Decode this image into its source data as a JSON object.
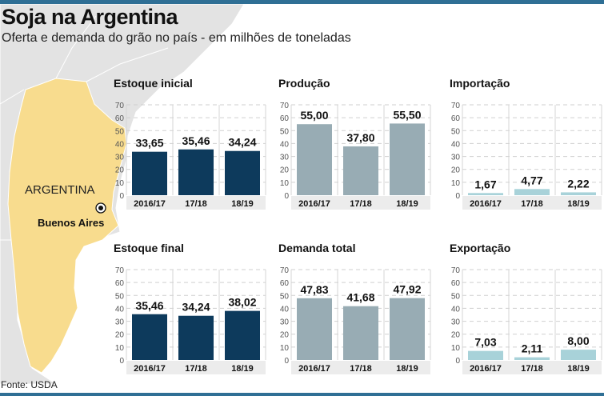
{
  "title": "Soja na Argentina",
  "subtitle": "Oferta e demanda do grão no país - em milhões de toneladas",
  "map": {
    "country_label": "ARGENTINA",
    "city_label": "Buenos Aires",
    "country_color": "#f8dc8e",
    "land_color": "#e3e3e3"
  },
  "source": "Fonte: USDA",
  "chart_data": [
    {
      "type": "bar",
      "title": "Estoque inicial",
      "categories": [
        "2016/17",
        "17/18",
        "18/19"
      ],
      "values": [
        33.65,
        35.46,
        34.24
      ],
      "labels": [
        "33,65",
        "35,46",
        "34,24"
      ],
      "ylim": [
        0,
        70
      ],
      "yticks": [
        0,
        10,
        20,
        30,
        40,
        50,
        60,
        70
      ],
      "color": "#0d3a5c",
      "grid": true
    },
    {
      "type": "bar",
      "title": "Produção",
      "categories": [
        "2016/17",
        "17/18",
        "18/19"
      ],
      "values": [
        55.0,
        37.8,
        55.5
      ],
      "labels": [
        "55,00",
        "37,80",
        "55,50"
      ],
      "ylim": [
        0,
        70
      ],
      "yticks": [
        0,
        10,
        20,
        30,
        40,
        50,
        60,
        70
      ],
      "color": "#98acb4",
      "grid": true
    },
    {
      "type": "bar",
      "title": "Importação",
      "categories": [
        "2016/17",
        "17/18",
        "18/19"
      ],
      "values": [
        1.67,
        4.77,
        2.22
      ],
      "labels": [
        "1,67",
        "4,77",
        "2,22"
      ],
      "ylim": [
        0,
        70
      ],
      "yticks": [
        0,
        10,
        20,
        30,
        40,
        50,
        60,
        70
      ],
      "color": "#a8d2d9",
      "grid": true
    },
    {
      "type": "bar",
      "title": "Estoque final",
      "categories": [
        "2016/17",
        "17/18",
        "18/19"
      ],
      "values": [
        35.46,
        34.24,
        38.02
      ],
      "labels": [
        "35,46",
        "34,24",
        "38,02"
      ],
      "ylim": [
        0,
        70
      ],
      "yticks": [
        0,
        10,
        20,
        30,
        40,
        50,
        60,
        70
      ],
      "color": "#0d3a5c",
      "grid": true
    },
    {
      "type": "bar",
      "title": "Demanda total",
      "categories": [
        "2016/17",
        "17/18",
        "18/19"
      ],
      "values": [
        47.83,
        41.68,
        47.92
      ],
      "labels": [
        "47,83",
        "41,68",
        "47,92"
      ],
      "ylim": [
        0,
        70
      ],
      "yticks": [
        0,
        10,
        20,
        30,
        40,
        50,
        60,
        70
      ],
      "color": "#98acb4",
      "grid": true
    },
    {
      "type": "bar",
      "title": "Exportação",
      "categories": [
        "2016/17",
        "17/18",
        "18/19"
      ],
      "values": [
        7.03,
        2.11,
        8.0
      ],
      "labels": [
        "7,03",
        "2,11",
        "8,00"
      ],
      "ylim": [
        0,
        70
      ],
      "yticks": [
        0,
        10,
        20,
        30,
        40,
        50,
        60,
        70
      ],
      "color": "#a8d2d9",
      "grid": true
    }
  ]
}
